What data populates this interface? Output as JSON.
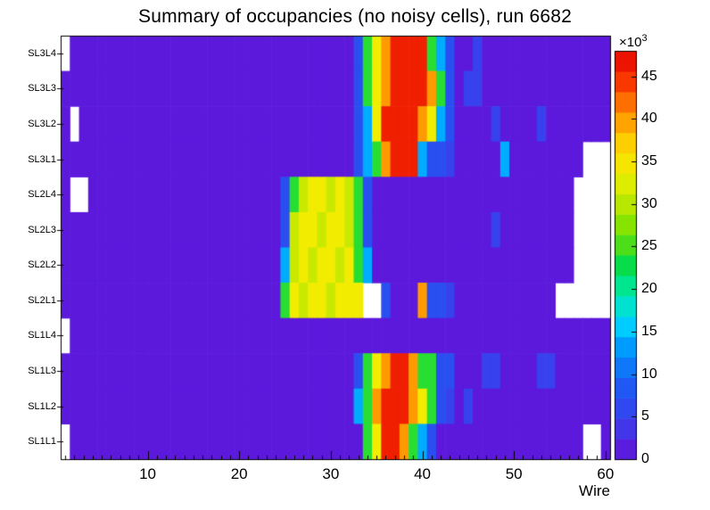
{
  "chart_data": {
    "type": "heatmap",
    "title": "Summary of occupancies (no noisy cells), run 6682",
    "xlabel": "Wire",
    "scale_label": "×10",
    "scale_exponent": "3",
    "x": {
      "min": 0.5,
      "max": 60.5,
      "bins": 60,
      "major_ticks": [
        10,
        20,
        30,
        40,
        50,
        60
      ]
    },
    "rows_top_to_bottom": [
      "SL3L4",
      "SL3L3",
      "SL3L2",
      "SL3L1",
      "SL2L4",
      "SL2L3",
      "SL2L2",
      "SL2L1",
      "SL1L4",
      "SL1L3",
      "SL1L2",
      "SL1L1"
    ],
    "z_scale_factor": 1000,
    "zmax": 48,
    "colorbar_ticks": [
      0,
      5,
      10,
      15,
      20,
      25,
      30,
      35,
      40,
      45
    ],
    "colorbar_levels": 20,
    "background_color": "#ffffff",
    "empty_bin_color": "#ffffff",
    "frame_color": "#000000",
    "palette": [
      [
        0.0,
        "#660fd7"
      ],
      [
        0.09,
        "#3c3ceb"
      ],
      [
        0.18,
        "#1e5af5"
      ],
      [
        0.27,
        "#0096ff"
      ],
      [
        0.33,
        "#00d2ff"
      ],
      [
        0.4,
        "#00ebb4"
      ],
      [
        0.47,
        "#00dc50"
      ],
      [
        0.55,
        "#6ee100"
      ],
      [
        0.63,
        "#bee800"
      ],
      [
        0.7,
        "#f0f000"
      ],
      [
        0.78,
        "#ffcd00"
      ],
      [
        0.85,
        "#ff8c00"
      ],
      [
        0.92,
        "#fa3c00"
      ],
      [
        1.0,
        "#e60000"
      ]
    ],
    "matrix_note": "values in units of 1000 counts; null = empty bin (white)",
    "matrix": [
      [
        null,
        1,
        1,
        1,
        1,
        1,
        1,
        1,
        1,
        1,
        1,
        1,
        1,
        1,
        1,
        1,
        1,
        1,
        1,
        1,
        1,
        1,
        1,
        1,
        1,
        1,
        1,
        1,
        1,
        1,
        1,
        1,
        7,
        24,
        34,
        40,
        46,
        46,
        46,
        46,
        24,
        14,
        7,
        1,
        1,
        5,
        1,
        1,
        1,
        1,
        1,
        1,
        1,
        1,
        1,
        1,
        1,
        1,
        1,
        1
      ],
      [
        1,
        1,
        1,
        1,
        1,
        1,
        1,
        1,
        1,
        1,
        1,
        1,
        1,
        1,
        1,
        1,
        1,
        1,
        1,
        1,
        1,
        1,
        1,
        1,
        1,
        1,
        1,
        1,
        1,
        1,
        1,
        1,
        7,
        24,
        34,
        40,
        46,
        46,
        46,
        46,
        40,
        24,
        7,
        1,
        5,
        5,
        1,
        1,
        1,
        1,
        1,
        1,
        1,
        1,
        1,
        1,
        1,
        1,
        1,
        1
      ],
      [
        1,
        null,
        1,
        1,
        1,
        1,
        1,
        1,
        1,
        1,
        1,
        1,
        1,
        1,
        1,
        1,
        1,
        1,
        1,
        1,
        1,
        1,
        1,
        1,
        1,
        1,
        1,
        1,
        1,
        1,
        1,
        1,
        7,
        14,
        34,
        46,
        46,
        46,
        46,
        40,
        34,
        14,
        7,
        1,
        1,
        1,
        1,
        5,
        1,
        1,
        1,
        1,
        5,
        1,
        1,
        1,
        1,
        1,
        1,
        1
      ],
      [
        1,
        1,
        1,
        1,
        1,
        1,
        1,
        1,
        1,
        1,
        1,
        1,
        1,
        1,
        1,
        1,
        1,
        1,
        1,
        1,
        1,
        1,
        1,
        1,
        1,
        1,
        1,
        1,
        1,
        1,
        1,
        1,
        7,
        14,
        24,
        40,
        46,
        46,
        46,
        14,
        7,
        7,
        5,
        1,
        1,
        1,
        1,
        1,
        14,
        1,
        1,
        1,
        1,
        1,
        1,
        1,
        1,
        null,
        null,
        null
      ],
      [
        1,
        null,
        null,
        1,
        1,
        1,
        1,
        1,
        1,
        1,
        1,
        1,
        1,
        1,
        1,
        1,
        1,
        1,
        1,
        1,
        1,
        1,
        1,
        1,
        7,
        24,
        31,
        34,
        34,
        31,
        34,
        31,
        24,
        7,
        1,
        1,
        1,
        1,
        1,
        1,
        1,
        1,
        1,
        1,
        1,
        1,
        1,
        1,
        1,
        1,
        1,
        1,
        1,
        1,
        1,
        1,
        null,
        null,
        null,
        null
      ],
      [
        1,
        1,
        1,
        1,
        1,
        1,
        1,
        1,
        1,
        1,
        1,
        1,
        1,
        1,
        1,
        1,
        1,
        1,
        1,
        1,
        1,
        1,
        1,
        1,
        7,
        31,
        34,
        34,
        31,
        34,
        34,
        31,
        24,
        7,
        1,
        1,
        1,
        1,
        1,
        1,
        1,
        1,
        1,
        1,
        1,
        1,
        1,
        5,
        1,
        1,
        1,
        1,
        1,
        1,
        1,
        1,
        null,
        null,
        null,
        null
      ],
      [
        1,
        1,
        1,
        1,
        1,
        1,
        1,
        1,
        1,
        1,
        1,
        1,
        1,
        1,
        1,
        1,
        1,
        1,
        1,
        1,
        1,
        1,
        1,
        1,
        14,
        31,
        34,
        31,
        34,
        34,
        31,
        34,
        24,
        14,
        1,
        1,
        1,
        1,
        1,
        1,
        1,
        1,
        1,
        1,
        1,
        1,
        1,
        1,
        1,
        1,
        1,
        1,
        1,
        1,
        1,
        1,
        null,
        null,
        null,
        null
      ],
      [
        1,
        1,
        1,
        1,
        1,
        1,
        1,
        1,
        1,
        1,
        1,
        1,
        1,
        1,
        1,
        1,
        1,
        1,
        1,
        1,
        1,
        1,
        1,
        1,
        24,
        34,
        31,
        34,
        34,
        31,
        34,
        34,
        34,
        null,
        null,
        7,
        1,
        1,
        1,
        40,
        7,
        7,
        5,
        1,
        1,
        1,
        1,
        1,
        1,
        1,
        1,
        1,
        1,
        1,
        null,
        null,
        null,
        null,
        null,
        null
      ],
      [
        null,
        1,
        1,
        1,
        1,
        1,
        1,
        1,
        1,
        1,
        1,
        1,
        1,
        1,
        1,
        1,
        1,
        1,
        1,
        1,
        1,
        1,
        1,
        1,
        1,
        1,
        1,
        1,
        1,
        1,
        1,
        1,
        1,
        1,
        1,
        1,
        1,
        1,
        1,
        1,
        1,
        1,
        1,
        1,
        1,
        1,
        1,
        1,
        1,
        1,
        1,
        1,
        1,
        1,
        1,
        1,
        1,
        1,
        1,
        1
      ],
      [
        1,
        1,
        1,
        1,
        1,
        1,
        1,
        1,
        1,
        1,
        1,
        1,
        1,
        1,
        1,
        1,
        1,
        1,
        1,
        1,
        1,
        1,
        1,
        1,
        1,
        1,
        1,
        1,
        1,
        1,
        1,
        1,
        7,
        24,
        34,
        40,
        46,
        46,
        40,
        24,
        24,
        7,
        7,
        1,
        1,
        1,
        5,
        5,
        1,
        1,
        1,
        1,
        5,
        5,
        1,
        1,
        1,
        1,
        1,
        1
      ],
      [
        1,
        1,
        1,
        1,
        1,
        1,
        1,
        1,
        1,
        1,
        1,
        1,
        1,
        1,
        1,
        1,
        1,
        1,
        1,
        1,
        1,
        1,
        1,
        1,
        1,
        1,
        1,
        1,
        1,
        1,
        1,
        1,
        14,
        24,
        40,
        46,
        46,
        46,
        40,
        34,
        24,
        7,
        5,
        1,
        5,
        1,
        1,
        1,
        1,
        1,
        1,
        1,
        1,
        1,
        1,
        1,
        1,
        1,
        1,
        1
      ],
      [
        null,
        1,
        1,
        1,
        1,
        1,
        1,
        1,
        1,
        1,
        1,
        1,
        1,
        1,
        1,
        1,
        1,
        1,
        1,
        1,
        1,
        1,
        1,
        1,
        1,
        1,
        1,
        1,
        1,
        1,
        1,
        1,
        1,
        24,
        34,
        46,
        46,
        40,
        24,
        14,
        7,
        1,
        1,
        1,
        1,
        1,
        1,
        1,
        1,
        1,
        1,
        1,
        1,
        1,
        1,
        1,
        1,
        null,
        null,
        1
      ]
    ]
  }
}
